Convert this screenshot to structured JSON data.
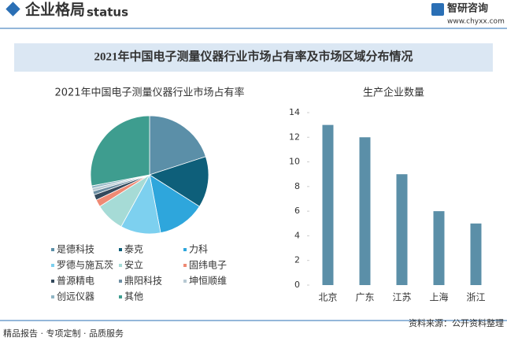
{
  "header": {
    "title": "企业格局",
    "watermark": "status",
    "logo": "智研咨询",
    "url": "www.chyxx.com"
  },
  "banner_title": "2021年中国电子测量仪器行业市场占有率及市场区域分布情况",
  "footer": {
    "services": "精品报告 · 专项定制 · 品质服务",
    "source": "资料来源：公开资料整理"
  },
  "chart_data": [
    {
      "type": "pie",
      "title": "2021年中国电子测量仪器行业市场占有率",
      "categories": [
        "是德科技",
        "泰克",
        "力科",
        "罗德与施瓦茨",
        "安立",
        "固纬电子",
        "普源精电",
        "鼎阳科技",
        "坤恒顺维",
        "创远仪器",
        "其他"
      ],
      "values": [
        20,
        14,
        13,
        11,
        8,
        2,
        1.5,
        1,
        0.8,
        0.7,
        28
      ],
      "colors": [
        "#5b8fa8",
        "#0e5f7a",
        "#2ea6dc",
        "#7dd0ef",
        "#a6dbd6",
        "#ef8a74",
        "#33495c",
        "#6d8fa3",
        "#b7c9d3",
        "#8fb5c4",
        "#3e9d8f"
      ]
    },
    {
      "type": "bar",
      "title": "生产企业数量",
      "categories": [
        "北京",
        "广东",
        "江苏",
        "上海",
        "浙江"
      ],
      "values": [
        13,
        12,
        9,
        6,
        5
      ],
      "color": "#5b8fa8",
      "ylim": [
        0,
        14
      ],
      "yticks": [
        0,
        2,
        4,
        6,
        8,
        10,
        12,
        14
      ],
      "grid": false
    }
  ]
}
